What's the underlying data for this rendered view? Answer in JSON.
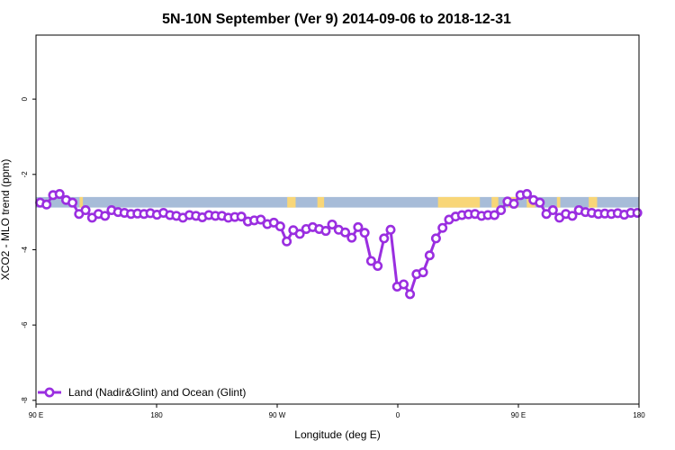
{
  "chart_data": {
    "type": "line",
    "title": "5N-10N September (Ver 9)   2014-09-06 to 2018-12-31",
    "xlabel": "Longitude (deg E)",
    "ylabel": "XCO2 - MLO trend (ppm)",
    "xlim": [
      90,
      450
    ],
    "ylim": [
      -8.1,
      1.7
    ],
    "x_tick_values": [
      90,
      162,
      234,
      306,
      378,
      450
    ],
    "x_tick_labels": [
      "90 E",
      "180",
      "90 W",
      "0",
      "90 E",
      "180"
    ],
    "y_tick_values": [
      0,
      -2,
      -4,
      -6,
      -8
    ],
    "y_tick_labels": [
      "0",
      "-2",
      "-4",
      "-6",
      "-8"
    ],
    "grid": false,
    "legend_position": "bottom-left",
    "land_ocean_band": {
      "y_top": -2.6,
      "y_bottom": -2.88,
      "ocean_color": "#a7bcd8",
      "land_color": "#f8d678",
      "land_segments": [
        [
          116,
          118
        ],
        [
          240,
          245
        ],
        [
          258,
          262
        ],
        [
          330,
          355
        ],
        [
          362,
          366
        ],
        [
          372,
          378
        ],
        [
          383,
          388
        ],
        [
          401,
          403
        ],
        [
          420,
          425
        ]
      ]
    },
    "series": [
      {
        "name": "Land (Nadir&Glint) and Ocean (Glint)",
        "color": "#9a2ee0",
        "x": [
          92.5,
          96.3,
          100.2,
          104.1,
          108.0,
          111.8,
          115.7,
          119.6,
          123.5,
          127.3,
          131.2,
          135.1,
          139.0,
          142.8,
          146.7,
          150.6,
          154.5,
          158.3,
          162.2,
          166.1,
          170.0,
          173.8,
          177.7,
          181.6,
          185.5,
          189.3,
          193.2,
          197.1,
          201.0,
          204.8,
          208.7,
          212.6,
          216.5,
          220.3,
          224.2,
          228.1,
          232.0,
          235.8,
          239.7,
          243.6,
          247.5,
          251.3,
          255.2,
          259.1,
          263.0,
          266.8,
          270.7,
          274.6,
          278.5,
          282.3,
          286.2,
          290.1,
          294.0,
          297.8,
          301.7,
          305.6,
          309.5,
          313.3,
          317.2,
          321.1,
          325.0,
          328.8,
          332.7,
          336.6,
          340.5,
          344.3,
          348.2,
          352.1,
          356.0,
          359.8,
          363.7,
          367.6,
          371.5,
          375.3,
          379.2,
          383.1,
          387.0,
          390.8,
          394.7,
          398.6,
          402.5,
          406.3,
          410.2,
          414.1,
          418.0,
          421.8,
          425.7,
          429.6,
          433.5,
          437.3,
          441.2,
          445.1,
          449.0
        ],
        "y": [
          -2.75,
          -2.8,
          -2.55,
          -2.52,
          -2.68,
          -2.75,
          -3.05,
          -2.95,
          -3.15,
          -3.05,
          -3.1,
          -2.95,
          -3.0,
          -3.02,
          -3.05,
          -3.04,
          -3.05,
          -3.03,
          -3.07,
          -3.02,
          -3.08,
          -3.1,
          -3.15,
          -3.08,
          -3.1,
          -3.14,
          -3.08,
          -3.1,
          -3.1,
          -3.15,
          -3.13,
          -3.12,
          -3.25,
          -3.22,
          -3.2,
          -3.32,
          -3.28,
          -3.38,
          -3.78,
          -3.48,
          -3.58,
          -3.45,
          -3.4,
          -3.45,
          -3.5,
          -3.33,
          -3.47,
          -3.54,
          -3.68,
          -3.4,
          -3.55,
          -4.3,
          -4.43,
          -3.7,
          -3.47,
          -4.98,
          -4.92,
          -5.18,
          -4.65,
          -4.6,
          -4.15,
          -3.7,
          -3.42,
          -3.2,
          -3.12,
          -3.08,
          -3.06,
          -3.05,
          -3.1,
          -3.08,
          -3.08,
          -2.95,
          -2.72,
          -2.78,
          -2.55,
          -2.52,
          -2.68,
          -2.75,
          -3.05,
          -2.95,
          -3.15,
          -3.05,
          -3.1,
          -2.95,
          -3.0,
          -3.02,
          -3.05,
          -3.04,
          -3.05,
          -3.03,
          -3.07,
          -3.02,
          -3.02
        ]
      }
    ]
  }
}
